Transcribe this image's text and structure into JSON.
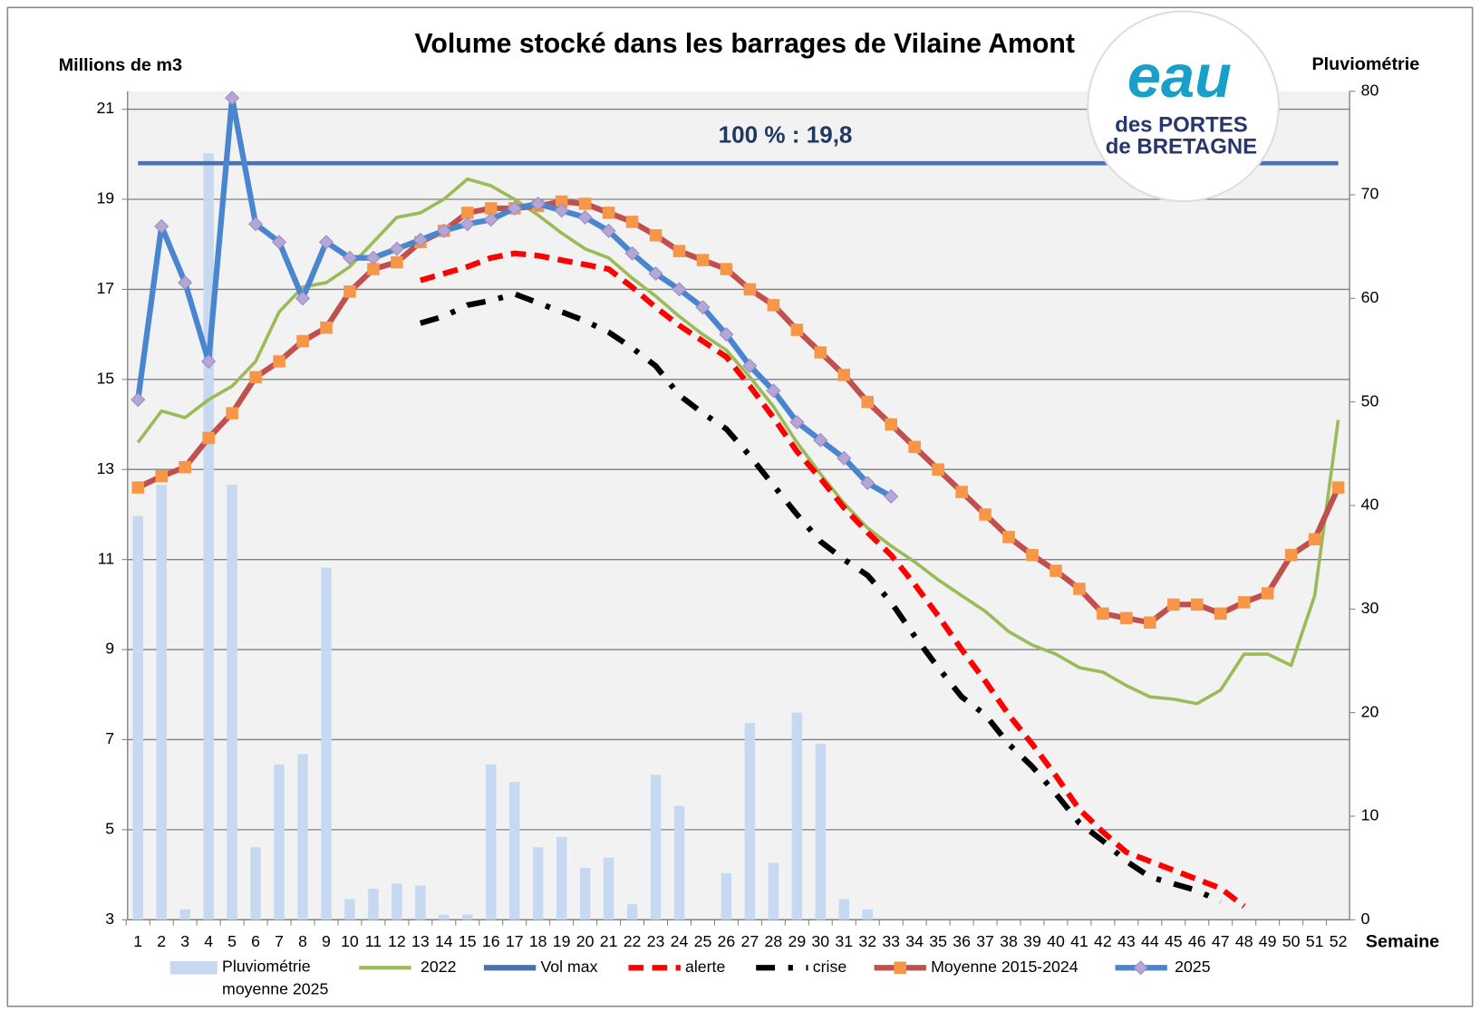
{
  "chart_data": {
    "type": "line",
    "title": "Volume stocké dans les barrages de Vilaine Amont",
    "y_label": "Millions de m3",
    "y2_label": "Pluviométrie",
    "x_label": "Semaine",
    "annotation": "100 % : 19,8",
    "categories": [
      1,
      2,
      3,
      4,
      5,
      6,
      7,
      8,
      9,
      10,
      11,
      12,
      13,
      14,
      15,
      16,
      17,
      18,
      19,
      20,
      21,
      22,
      23,
      24,
      25,
      26,
      27,
      28,
      29,
      30,
      31,
      32,
      33,
      34,
      35,
      36,
      37,
      38,
      39,
      40,
      41,
      42,
      43,
      44,
      45,
      46,
      47,
      48,
      49,
      50,
      51,
      52
    ],
    "ylim": [
      3,
      21.4
    ],
    "yticks": [
      3,
      5,
      7,
      9,
      11,
      13,
      15,
      17,
      19,
      21
    ],
    "y2lim": [
      0,
      80
    ],
    "y2ticks": [
      0,
      10,
      20,
      30,
      40,
      50,
      60,
      70,
      80
    ],
    "grid": true,
    "legend": "bottom",
    "series": [
      {
        "name": "Pluviométrie moyenne 2025",
        "type": "bar",
        "axis": "y2",
        "color": "#c6d9f1",
        "values": [
          39,
          42,
          1,
          74,
          42,
          7,
          15,
          16,
          34,
          2,
          3,
          3.5,
          3.3,
          0.5,
          0.5,
          15,
          13.3,
          7,
          8,
          5,
          6,
          1.5,
          14,
          11,
          0,
          4.5,
          19,
          5.5,
          20,
          17,
          2,
          1,
          null,
          null,
          null,
          null,
          null,
          null,
          null,
          null,
          null,
          null,
          null,
          null,
          null,
          null,
          null,
          null,
          null,
          null,
          null,
          null
        ]
      },
      {
        "name": "2022",
        "type": "line",
        "color": "#9bbb59",
        "values": [
          13.6,
          14.3,
          14.15,
          14.55,
          14.85,
          15.4,
          16.5,
          17.05,
          17.15,
          17.5,
          18.05,
          18.6,
          18.7,
          19,
          19.45,
          19.3,
          19,
          18.65,
          18.25,
          17.9,
          17.7,
          17.25,
          16.85,
          16.4,
          16,
          15.65,
          15.05,
          14.4,
          13.6,
          12.9,
          12.25,
          11.7,
          11.3,
          10.95,
          10.55,
          10.2,
          9.85,
          9.4,
          9.1,
          8.9,
          8.6,
          8.5,
          8.2,
          7.95,
          7.9,
          7.8,
          8.1,
          8.9,
          8.9,
          8.65,
          10.2,
          14.1
        ]
      },
      {
        "name": "Vol max",
        "type": "line",
        "color": "#4a72b0",
        "values": [
          19.8,
          19.8,
          19.8,
          19.8,
          19.8,
          19.8,
          19.8,
          19.8,
          19.8,
          19.8,
          19.8,
          19.8,
          19.8,
          19.8,
          19.8,
          19.8,
          19.8,
          19.8,
          19.8,
          19.8,
          19.8,
          19.8,
          19.8,
          19.8,
          19.8,
          19.8,
          19.8,
          19.8,
          19.8,
          19.8,
          19.8,
          19.8,
          19.8,
          19.8,
          19.8,
          19.8,
          19.8,
          19.8,
          19.8,
          19.8,
          19.8,
          19.8,
          19.8,
          19.8,
          19.8,
          19.8,
          19.8,
          19.8,
          19.8,
          19.8,
          19.8,
          19.8
        ]
      },
      {
        "name": "alerte",
        "type": "line",
        "dash": "dashed",
        "color": "#ff0000",
        "values": [
          null,
          null,
          null,
          null,
          null,
          null,
          null,
          null,
          null,
          null,
          null,
          null,
          17.2,
          17.35,
          17.5,
          17.7,
          17.8,
          17.75,
          17.65,
          17.55,
          17.45,
          17.05,
          16.6,
          16.2,
          15.85,
          15.5,
          14.85,
          14.15,
          13.4,
          12.8,
          12.15,
          11.6,
          11.1,
          10.45,
          9.75,
          9,
          8.3,
          7.55,
          6.9,
          6.2,
          5.45,
          4.95,
          4.5,
          4.3,
          4.1,
          3.9,
          3.7,
          3.3,
          null,
          null,
          null,
          null
        ]
      },
      {
        "name": "crise",
        "type": "line",
        "dash": "dashdot",
        "color": "#000000",
        "values": [
          null,
          null,
          null,
          null,
          null,
          null,
          null,
          null,
          null,
          null,
          null,
          null,
          16.25,
          16.4,
          16.65,
          16.75,
          16.9,
          16.7,
          16.5,
          16.3,
          16.05,
          15.7,
          15.3,
          14.65,
          14.25,
          13.9,
          13.3,
          12.65,
          12,
          11.4,
          11,
          10.65,
          10.05,
          9.3,
          8.6,
          7.95,
          7.55,
          6.9,
          6.4,
          5.8,
          5.15,
          4.75,
          4.3,
          3.95,
          3.8,
          3.65,
          3.4,
          null,
          null,
          null,
          null,
          null
        ]
      },
      {
        "name": "Moyenne 2015-2024",
        "type": "line",
        "marker": "square",
        "color": "#c0504d",
        "marker_color": "#f79646",
        "values": [
          12.6,
          12.85,
          13.05,
          13.7,
          14.25,
          15.05,
          15.4,
          15.85,
          16.15,
          16.95,
          17.45,
          17.6,
          18.05,
          18.3,
          18.7,
          18.8,
          18.8,
          18.85,
          18.95,
          18.9,
          18.7,
          18.5,
          18.2,
          17.85,
          17.65,
          17.45,
          17,
          16.65,
          16.1,
          15.6,
          15.1,
          14.5,
          14,
          13.5,
          13,
          12.5,
          12,
          11.5,
          11.1,
          10.75,
          10.35,
          9.8,
          9.7,
          9.6,
          10,
          10,
          9.8,
          10.05,
          10.25,
          11.1,
          11.45,
          12.6
        ]
      },
      {
        "name": "2025",
        "type": "line",
        "marker": "diamond",
        "color": "#4a86d0",
        "marker_color": "#b4a7d6",
        "values": [
          14.55,
          18.4,
          17.15,
          15.4,
          21.25,
          18.45,
          18.05,
          16.8,
          18.05,
          17.7,
          17.7,
          17.9,
          18.1,
          18.3,
          18.45,
          18.55,
          18.8,
          18.9,
          18.75,
          18.6,
          18.3,
          17.8,
          17.35,
          17,
          16.6,
          16,
          15.3,
          14.75,
          14.05,
          13.65,
          13.25,
          12.7,
          12.4,
          null,
          null,
          null,
          null,
          null,
          null,
          null,
          null,
          null,
          null,
          null,
          null,
          null,
          null,
          null,
          null,
          null,
          null,
          null
        ]
      }
    ]
  },
  "logo": {
    "name": "eau",
    "line1": "des PORTES",
    "line2": "de BRETAGNE"
  }
}
